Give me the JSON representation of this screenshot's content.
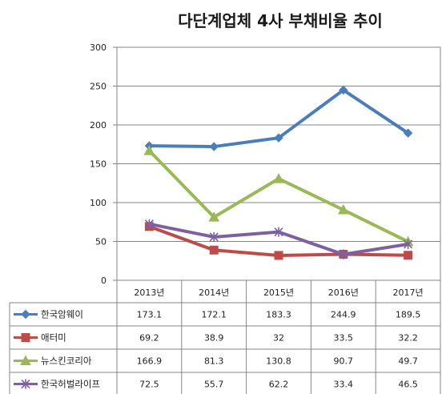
{
  "chart_data": {
    "type": "line",
    "title": "다단계업체 4사 부채비율 추이",
    "categories": [
      "2013년",
      "2014년",
      "2015년",
      "2016년",
      "2017년"
    ],
    "ylim": [
      0,
      300
    ],
    "yticks": [
      0,
      50,
      100,
      150,
      200,
      250,
      300
    ],
    "grid": true,
    "legend": "data-table",
    "series": [
      {
        "name": "한국암웨이",
        "values": [
          173.1,
          172.1,
          183.3,
          244.9,
          189.5
        ],
        "labels": [
          "173.1",
          "172.1",
          "183.3",
          "244.9",
          "189.5"
        ],
        "color": "#4A7EBB",
        "marker": "diamond"
      },
      {
        "name": "애터미",
        "values": [
          69.2,
          38.9,
          32,
          33.5,
          32.2
        ],
        "labels": [
          "69.2",
          "38.9",
          "32",
          "33.5",
          "32.2"
        ],
        "color": "#BE4B48",
        "marker": "square"
      },
      {
        "name": "뉴스킨코리아",
        "values": [
          166.9,
          81.3,
          130.8,
          90.7,
          49.7
        ],
        "labels": [
          "166.9",
          "81.3",
          "130.8",
          "90.7",
          "49.7"
        ],
        "color": "#98B954",
        "marker": "triangle"
      },
      {
        "name": "한국허벌라이프",
        "values": [
          72.5,
          55.7,
          62.2,
          33.4,
          46.5
        ],
        "labels": [
          "72.5",
          "55.7",
          "62.2",
          "33.4",
          "46.5"
        ],
        "color": "#7D60A0",
        "marker": "star"
      }
    ]
  }
}
